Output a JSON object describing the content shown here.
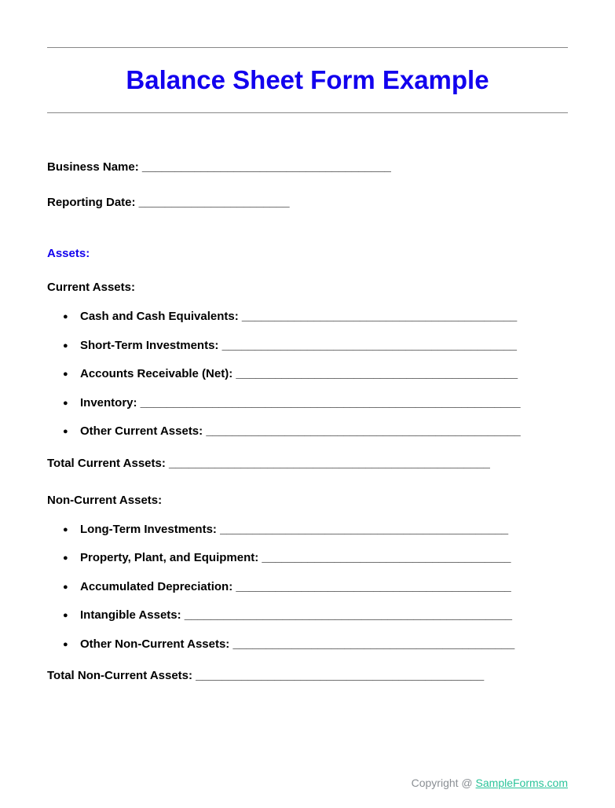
{
  "colors": {
    "title": "#1200ee",
    "section": "#1200ee",
    "text": "#000000",
    "hr": "#888888",
    "footer_text": "#8a8f94",
    "footer_link": "#2bc49a",
    "background": "#ffffff"
  },
  "title": "Balance Sheet Form Example",
  "header_fields": {
    "business_name": "Business Name: ______________________________________",
    "reporting_date": "Reporting Date: _______________________"
  },
  "assets": {
    "heading": "Assets:",
    "current": {
      "heading": "Current Assets:",
      "items": [
        "Cash and Cash Equivalents: __________________________________________",
        "Short-Term Investments: _____________________________________________",
        "Accounts Receivable (Net): ___________________________________________",
        "Inventory: __________________________________________________________",
        "Other Current Assets: ________________________________________________"
      ],
      "total": "Total Current Assets: _________________________________________________"
    },
    "non_current": {
      "heading": "Non-Current Assets:",
      "items": [
        "Long-Term Investments: ____________________________________________",
        "Property, Plant, and Equipment: ______________________________________",
        "Accumulated Depreciation: __________________________________________",
        "Intangible Assets: __________________________________________________",
        "Other Non-Current Assets: ___________________________________________"
      ],
      "total": "Total Non-Current Assets: ____________________________________________"
    }
  },
  "footer": {
    "prefix": "Copyright @ ",
    "brand": "SampleForms.com"
  }
}
